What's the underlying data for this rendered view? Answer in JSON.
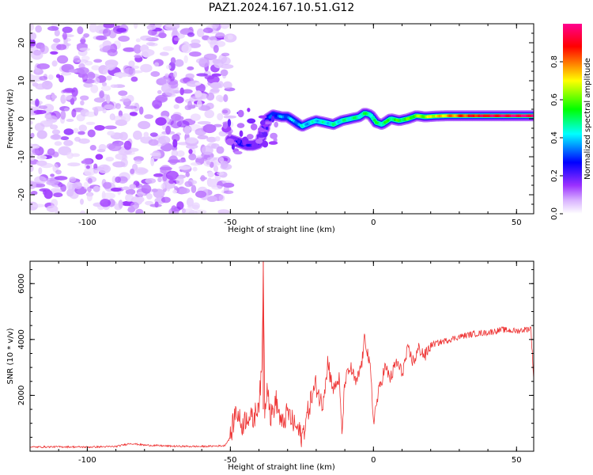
{
  "title": "PAZ1.2024.167.10.51.G12",
  "colors": {
    "snr_line": "#ee3333",
    "colormap": [
      "#ffffff",
      "#d9b3ff",
      "#9b30ff",
      "#0000ff",
      "#00ffff",
      "#00ff00",
      "#ffff00",
      "#ff0000",
      "#ff0090"
    ]
  },
  "chart_data": [
    {
      "type": "heatmap",
      "title": "PAZ1.2024.167.10.51.G12",
      "xlabel": "Height of straight line (km)",
      "ylabel": "Frequency (Hz)",
      "xlim": [
        -120,
        56
      ],
      "ylim": [
        -25,
        25
      ],
      "x_ticks": [
        -100,
        -50,
        0,
        50
      ],
      "y_ticks": [
        -20,
        -10,
        0,
        10,
        20
      ],
      "noise_region": {
        "x_range": [
          -120,
          -50
        ],
        "freq_range": [
          -25,
          25
        ],
        "amplitude_range": [
          0.0,
          0.12
        ]
      },
      "signal_track": [
        {
          "x": -50,
          "freq": -5.5,
          "amp": 0.16
        },
        {
          "x": -48,
          "freq": -6.0,
          "amp": 0.22
        },
        {
          "x": -46,
          "freq": -6.5,
          "amp": 0.25
        },
        {
          "x": -44,
          "freq": -7.0,
          "amp": 0.22
        },
        {
          "x": -42,
          "freq": -7.0,
          "amp": 0.2
        },
        {
          "x": -40,
          "freq": -6.5,
          "amp": 0.2
        },
        {
          "x": -39,
          "freq": -4.5,
          "amp": 0.22
        },
        {
          "x": -38,
          "freq": -2.5,
          "amp": 0.24
        },
        {
          "x": -37,
          "freq": 0.0,
          "amp": 0.26
        },
        {
          "x": -35,
          "freq": 1.0,
          "amp": 0.3
        },
        {
          "x": -32,
          "freq": 0.5,
          "amp": 0.34
        },
        {
          "x": -30,
          "freq": 0.5,
          "amp": 0.36
        },
        {
          "x": -28,
          "freq": -0.5,
          "amp": 0.38
        },
        {
          "x": -25,
          "freq": -2.0,
          "amp": 0.4
        },
        {
          "x": -22,
          "freq": -1.0,
          "amp": 0.4
        },
        {
          "x": -20,
          "freq": -0.5,
          "amp": 0.42
        },
        {
          "x": -17,
          "freq": -1.0,
          "amp": 0.42
        },
        {
          "x": -14,
          "freq": -1.5,
          "amp": 0.44
        },
        {
          "x": -11,
          "freq": -0.5,
          "amp": 0.44
        },
        {
          "x": -8,
          "freq": 0.0,
          "amp": 0.46
        },
        {
          "x": -5,
          "freq": 0.5,
          "amp": 0.46
        },
        {
          "x": -3,
          "freq": 1.5,
          "amp": 0.48
        },
        {
          "x": -1,
          "freq": 1.0,
          "amp": 0.48
        },
        {
          "x": 1,
          "freq": -1.0,
          "amp": 0.5
        },
        {
          "x": 3,
          "freq": -1.5,
          "amp": 0.5
        },
        {
          "x": 6,
          "freq": 0.0,
          "amp": 0.52
        },
        {
          "x": 9,
          "freq": -0.5,
          "amp": 0.54
        },
        {
          "x": 12,
          "freq": 0.0,
          "amp": 0.56
        },
        {
          "x": 15,
          "freq": 0.8,
          "amp": 0.6
        },
        {
          "x": 18,
          "freq": 0.5,
          "amp": 0.64
        },
        {
          "x": 22,
          "freq": 0.7,
          "amp": 0.7
        },
        {
          "x": 26,
          "freq": 0.8,
          "amp": 0.76
        },
        {
          "x": 30,
          "freq": 0.8,
          "amp": 0.82
        },
        {
          "x": 35,
          "freq": 0.8,
          "amp": 0.88
        },
        {
          "x": 40,
          "freq": 0.8,
          "amp": 0.92
        },
        {
          "x": 45,
          "freq": 0.8,
          "amp": 0.95
        },
        {
          "x": 50,
          "freq": 0.8,
          "amp": 0.97
        },
        {
          "x": 56,
          "freq": 0.8,
          "amp": 0.98
        }
      ],
      "colorbar": {
        "label": "Normalized spectral amplitude",
        "ticks": [
          "0.0",
          "0.2",
          "0.4",
          "0.6",
          "0.8"
        ],
        "range": [
          0,
          1
        ]
      }
    },
    {
      "type": "line",
      "xlabel": "Height of straight line (km)",
      "ylabel": "SNR (10 * v/v)",
      "xlim": [
        -120,
        56
      ],
      "ylim": [
        0,
        6800
      ],
      "x_ticks": [
        -100,
        -50,
        0,
        50
      ],
      "y_ticks": [
        2000,
        4000,
        6000
      ],
      "series": [
        {
          "x": [
            -120,
            -110,
            -100,
            -90,
            -85,
            -80,
            -70,
            -60,
            -52,
            -50,
            -48,
            -46,
            -44,
            -42,
            -40,
            -39,
            -38.5,
            -38,
            -37,
            -36,
            -34,
            -32,
            -30,
            -28,
            -26,
            -25,
            -24,
            -22,
            -20,
            -18,
            -16,
            -14,
            -12,
            -11,
            -10,
            -8,
            -6,
            -4,
            -3,
            -2,
            -1,
            0,
            2,
            4,
            6,
            8,
            10,
            12,
            14,
            16,
            18,
            20,
            25,
            30,
            35,
            40,
            45,
            50,
            55,
            56
          ],
          "y": [
            150,
            160,
            150,
            170,
            280,
            220,
            180,
            170,
            200,
            500,
            1500,
            900,
            1300,
            1100,
            1800,
            2800,
            6800,
            1500,
            2500,
            1200,
            1800,
            900,
            1400,
            1000,
            700,
            500,
            900,
            1800,
            2400,
            1600,
            3200,
            2200,
            2600,
            600,
            2500,
            3000,
            2400,
            3200,
            4100,
            3500,
            2800,
            1100,
            2200,
            3000,
            2600,
            3200,
            2800,
            3600,
            3200,
            3700,
            3400,
            3800,
            3950,
            4100,
            4200,
            4250,
            4350,
            4300,
            4400,
            2600
          ]
        }
      ]
    }
  ]
}
